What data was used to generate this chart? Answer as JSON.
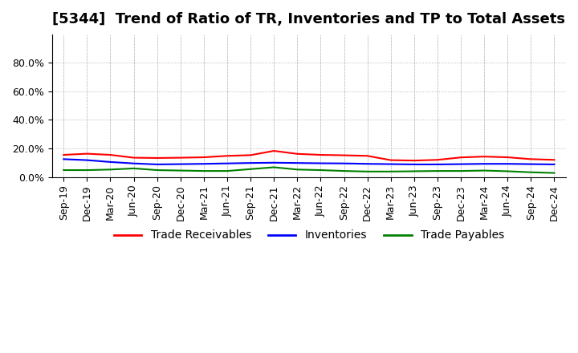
{
  "title": "[5344]  Trend of Ratio of TR, Inventories and TP to Total Assets",
  "x_labels": [
    "Sep-19",
    "Dec-19",
    "Mar-20",
    "Jun-20",
    "Sep-20",
    "Dec-20",
    "Mar-21",
    "Jun-21",
    "Sep-21",
    "Dec-21",
    "Mar-22",
    "Jun-22",
    "Sep-22",
    "Dec-22",
    "Mar-23",
    "Jun-23",
    "Sep-23",
    "Dec-23",
    "Mar-24",
    "Jun-24",
    "Sep-24",
    "Dec-24"
  ],
  "trade_receivables": [
    0.155,
    0.163,
    0.155,
    0.135,
    0.133,
    0.135,
    0.138,
    0.148,
    0.153,
    0.183,
    0.162,
    0.155,
    0.152,
    0.148,
    0.118,
    0.115,
    0.12,
    0.137,
    0.143,
    0.138,
    0.125,
    0.12
  ],
  "inventories": [
    0.125,
    0.118,
    0.105,
    0.095,
    0.088,
    0.09,
    0.092,
    0.095,
    0.098,
    0.1,
    0.098,
    0.096,
    0.095,
    0.092,
    0.09,
    0.088,
    0.088,
    0.09,
    0.092,
    0.092,
    0.09,
    0.088
  ],
  "trade_payables": [
    0.048,
    0.048,
    0.052,
    0.06,
    0.048,
    0.045,
    0.042,
    0.042,
    0.055,
    0.068,
    0.052,
    0.048,
    0.042,
    0.038,
    0.038,
    0.04,
    0.042,
    0.042,
    0.045,
    0.04,
    0.033,
    0.028
  ],
  "yticks": [
    0.0,
    0.2,
    0.4,
    0.6,
    0.8
  ],
  "ytick_labels": [
    "0.0%",
    "20.0%",
    "40.0%",
    "60.0%",
    "80.0%"
  ],
  "tr_color": "#ff0000",
  "inv_color": "#0000ff",
  "tp_color": "#008000",
  "background_color": "#ffffff",
  "grid_color": "#aaaaaa",
  "legend_labels": [
    "Trade Receivables",
    "Inventories",
    "Trade Payables"
  ],
  "title_fontsize": 13,
  "axis_fontsize": 9,
  "legend_fontsize": 10
}
